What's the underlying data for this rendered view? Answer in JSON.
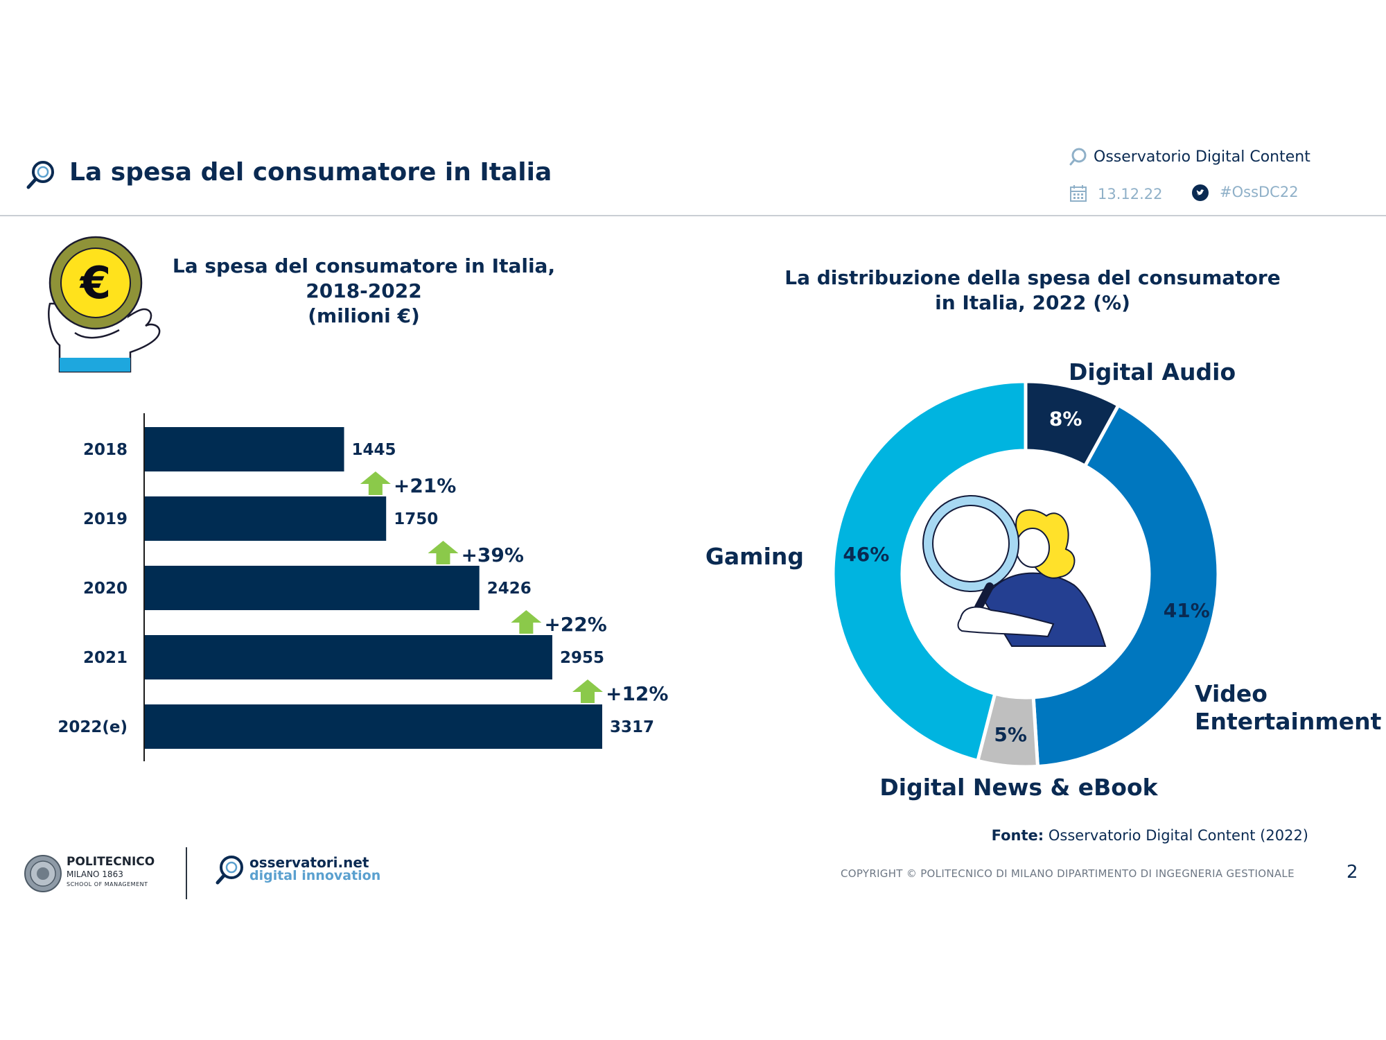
{
  "header": {
    "title": "La spesa del consumatore in Italia",
    "brand": "Osservatorio Digital Content",
    "date": "13.12.22",
    "hashtag": "#OssDC22"
  },
  "colors": {
    "navy": "#002c52",
    "arrow_green": "#8bc94a",
    "audio": "#0a2a52",
    "video": "#0077bf",
    "news": "#bfbfbf",
    "gaming": "#00b4e0"
  },
  "icons": [
    "magnifier-logo-icon",
    "calendar-icon",
    "twitter-icon",
    "euro-coin-hand-icon",
    "woman-magnifier-illustration"
  ],
  "chart_data": [
    {
      "type": "bar",
      "orientation": "horizontal",
      "title": "La spesa del consumatore in Italia, 2018-2022 (milioni €)",
      "title_lines": [
        "La spesa del consumatore in Italia,",
        "2018-2022",
        "(milioni €)"
      ],
      "categories": [
        "2018",
        "2019",
        "2020",
        "2021",
        "2022(e)"
      ],
      "values": [
        1445,
        1750,
        2426,
        2955,
        3317
      ],
      "value_labels": [
        "1445",
        "1750",
        "2426",
        "2955",
        "3317"
      ],
      "growth_labels": [
        "+21%",
        "+39%",
        "+22%",
        "+12%"
      ],
      "xlim": [
        0,
        3600
      ],
      "grid": false,
      "xlabel": "",
      "ylabel": ""
    },
    {
      "type": "pie",
      "variant": "donut",
      "title": "La distribuzione della spesa del consumatore in Italia, 2022 (%)",
      "title_lines": [
        "La distribuzione della spesa del consumatore",
        "in Italia, 2022 (%)"
      ],
      "labels": [
        "Digital Audio",
        "Video Entertainment",
        "Digital News & eBook",
        "Gaming"
      ],
      "label_lines": [
        [
          "Digital Audio"
        ],
        [
          "Video",
          "Entertainment"
        ],
        [
          "Digital News & eBook"
        ],
        [
          "Gaming"
        ]
      ],
      "values": [
        8,
        41,
        5,
        46
      ],
      "value_labels": [
        "8%",
        "41%",
        "5%",
        "46%"
      ]
    }
  ],
  "footer": {
    "fonte_label": "Fonte:",
    "fonte_text": "Osservatorio Digital Content (2022)",
    "copyright": "COPYRIGHT © POLITECNICO DI MILANO DIPARTIMENTO DI INGEGNERIA GESTIONALE",
    "page_number": "2",
    "poli_name": "POLITECNICO",
    "poli_sub1": "MILANO 1863",
    "poli_sub2": "SCHOOL OF MANAGEMENT",
    "oss_name": "osservatori.net",
    "oss_sub": "digital innovation"
  }
}
